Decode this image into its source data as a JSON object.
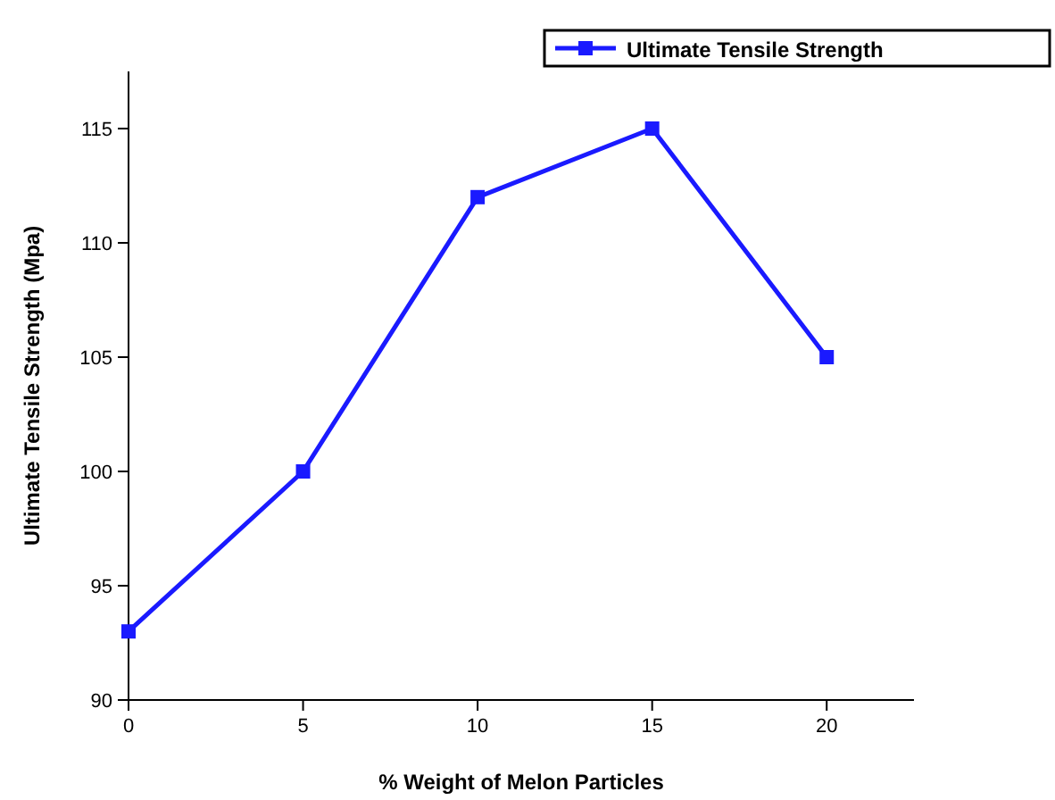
{
  "chart_data": {
    "type": "line",
    "xlabel": "% Weight of Melon Particles",
    "ylabel": "Ultimate Tensile Strength (Mpa)",
    "x": [
      0,
      5,
      10,
      15,
      20
    ],
    "series": [
      {
        "name": "Ultimate Tensile Strength",
        "color": "#1a1aff",
        "values": [
          93,
          100,
          112,
          115,
          105
        ]
      }
    ],
    "xlim": [
      0,
      22.5
    ],
    "xticks": [
      0,
      5,
      10,
      15,
      20
    ],
    "ylim": [
      90,
      117.5
    ],
    "yticks": [
      90,
      95,
      100,
      105,
      110,
      115
    ],
    "marker": "square",
    "line_style": "solid",
    "legend": "top right",
    "grid": false
  }
}
